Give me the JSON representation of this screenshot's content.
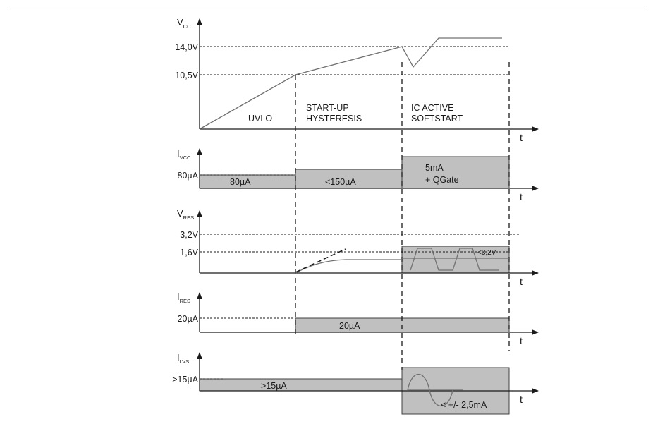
{
  "signals": [
    {
      "main": "V",
      "sub": "CC"
    },
    {
      "main": "I",
      "sub": "VCC"
    },
    {
      "main": "V",
      "sub": "RES"
    },
    {
      "main": "I",
      "sub": "RES"
    },
    {
      "main": "I",
      "sub": "LVS"
    }
  ],
  "time_label": "t",
  "levels": {
    "vcc_high": "14,0V",
    "vcc_low": "10,5V",
    "ivcc": "80µA",
    "vres_high": "3,2V",
    "vres_low": "1,6V",
    "ires": "20µA",
    "ilvs": ">15µA"
  },
  "phases": {
    "uvlo": "UVLO",
    "startup_1": "START-UP",
    "startup_2": "HYSTERESIS",
    "active_1": "IC ACTIVE",
    "active_2": "SOFTSTART"
  },
  "box_labels": {
    "ivcc_uvlo": "80µA",
    "ivcc_startup": "<150µA",
    "ivcc_active_1": "5mA",
    "ivcc_active_2": "+ QGate",
    "vres_active": "<3,2V",
    "ires_box": "20µA",
    "ilvs_box": ">15µA",
    "ilvs_active": "< +/- 2,5mA"
  },
  "colors": {
    "fill_gray": "#c0c0c0",
    "line": "#1a1a1a",
    "trace": "#707070"
  }
}
